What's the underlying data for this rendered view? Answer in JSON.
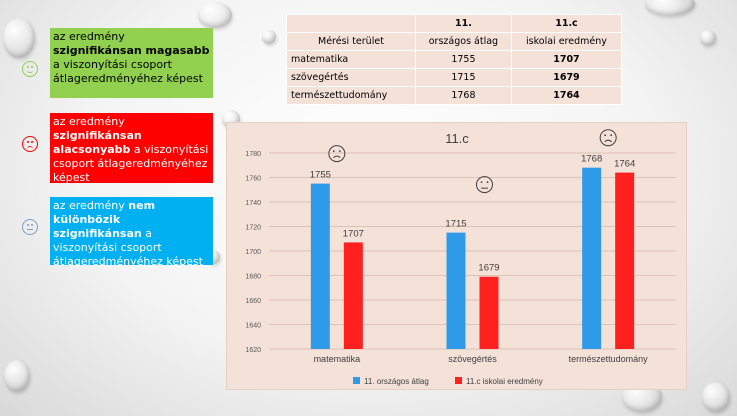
{
  "legend": {
    "items": [
      {
        "pre": "az eredmény ",
        "bold": "szignifikánsan magasabb",
        "post": " a viszonyítási csoport átlageredményéhez képest",
        "color": "#92d050",
        "text_color": "#000000",
        "smiley": "happy",
        "smiley_color": "#92d050"
      },
      {
        "pre": "az eredmény ",
        "bold": "szignifikánsan alacsonyabb",
        "post": " a viszonyítási csoport átlageredményéhez képest",
        "color": "#ff0000",
        "text_color": "#ffffff",
        "smiley": "sad",
        "smiley_color": "#ff0000"
      },
      {
        "pre": "az eredmény ",
        "bold": "nem különbözik szignifikánsan",
        "post": " a viszonyítási csoport átlageredményéhez képest",
        "color": "#00b0f0",
        "text_color": "#ffffff",
        "smiley": "neutral",
        "smiley_color": "#7f9fbf"
      }
    ]
  },
  "table": {
    "header1": [
      "",
      "11.",
      "11.c"
    ],
    "header2": [
      "Mérési terület",
      "országos átlag",
      "iskolai eredmény"
    ],
    "rows": [
      [
        "matematika",
        "1755",
        "1707"
      ],
      [
        "szövegértés",
        "1715",
        "1679"
      ],
      [
        "természettudomány",
        "1768",
        "1764"
      ]
    ]
  },
  "chart_data": {
    "type": "bar",
    "title": "11.c",
    "categories": [
      "matematika",
      "szövegértés",
      "természettudomány"
    ],
    "series": [
      {
        "name": "11. országos átlag",
        "values": [
          1755,
          1715,
          1768
        ],
        "color": "#2e9ae8"
      },
      {
        "name": "11.c iskolai eredmény",
        "values": [
          1707,
          1679,
          1764
        ],
        "color": "#ff2020"
      }
    ],
    "ylim": [
      1620,
      1780
    ],
    "yticks": [
      "1620",
      "1640",
      "1660",
      "1680",
      "1700",
      "1720",
      "1740",
      "1760",
      "1780"
    ],
    "gridlines": true,
    "legend_position": "bottom",
    "category_icons": [
      "sad",
      "neutral",
      "sad"
    ]
  }
}
